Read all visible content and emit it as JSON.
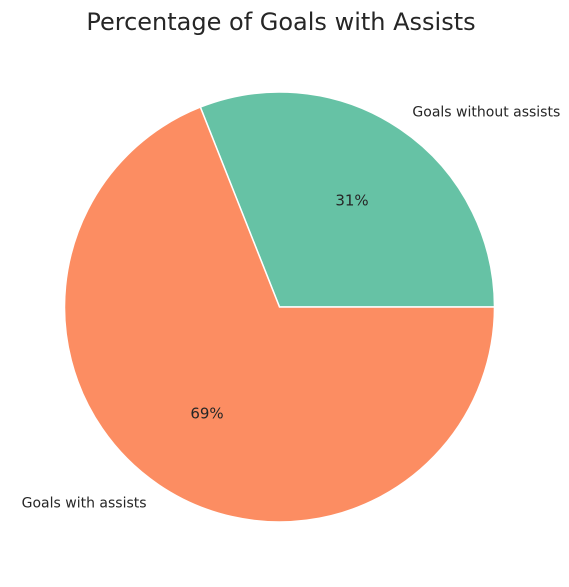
{
  "chart_data": {
    "type": "pie",
    "title": "Percentage of Goals with Assists",
    "start_angle_deg": 0,
    "direction": "counterclockwise",
    "slices": [
      {
        "label": "Goals without assists",
        "value": 31,
        "pct_label": "31%",
        "color": "#66c2a5"
      },
      {
        "label": "Goals with assists",
        "value": 69,
        "pct_label": "69%",
        "color": "#fc8d62"
      }
    ]
  }
}
